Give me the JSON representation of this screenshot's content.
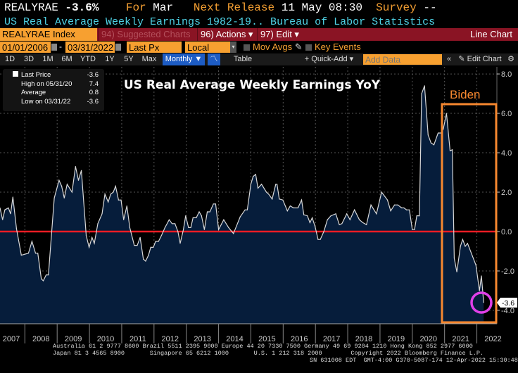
{
  "header": {
    "ticker": "REALYRAE",
    "last": "-3.6%",
    "for_label": "For",
    "for_value": "Mar",
    "next_release_label": "Next Release",
    "next_release_value": "11 May 08:30",
    "survey_label": "Survey",
    "survey_value": "--",
    "description": "US Real Average Weekly Earnings 1982-19.. Bureau of Labor Statistics"
  },
  "menubar": {
    "security": "REALYRAE Index",
    "suggested": "94) Suggested Charts",
    "actions": "96) Actions ▾",
    "edit": "97) Edit ▾",
    "chart_type": "Line Chart"
  },
  "controls": {
    "start_date": "01/01/2006",
    "end_date": "03/31/2022",
    "field": "Last Px",
    "currency": "Local CCY",
    "mov_avgs": "Mov Avgs",
    "key_events": "Key Events"
  },
  "toolbar": {
    "periods": [
      "1D",
      "3D",
      "1M",
      "6M",
      "YTD",
      "1Y",
      "5Y",
      "Max"
    ],
    "frequency": "Monthly ▼",
    "table": "Table",
    "quick_add": "+ Quick-Add ▾",
    "add_data_placeholder": "Add Data",
    "collapse": "«",
    "edit_chart": "✎ Edit Chart",
    "settings": "⚙"
  },
  "legend": [
    {
      "label": "Last Price",
      "value": "-3.6"
    },
    {
      "label": "High on 05/31/20",
      "value": "7.4"
    },
    {
      "label": "Average",
      "value": "0.8"
    },
    {
      "label": "Low on 03/31/22",
      "value": "-3.6"
    }
  ],
  "footer": [
    "Australia 61 2 9777 8600 Brazil 5511 2395 9000 Europe 44 20 7330 7500 Germany 49 69 9204 1210 Hong Kong 852 2977 6000",
    "Japan 81 3 4565 8900       Singapore 65 6212 1000       U.S. 1 212 318 2000        Copyright 2022 Bloomberg Finance L.P.",
    "SN 631008 EDT  GMT-4:00 G370-5087-174 12-Apr-2022 15:30:48"
  ],
  "colors": {
    "area": "#061d3b",
    "line": "#d8d8d8",
    "zero_line": "#ee1c24",
    "annotation_box": "#f7882f",
    "highlight_circle": "#e040e8",
    "accent_orange": "#f5a033"
  },
  "chart_data": {
    "type": "area",
    "title": "US Real Average Weekly Earnings YoY",
    "annotation": "Biden",
    "last_value_label": "-3.6",
    "xlim": [
      2007.23,
      2022.62
    ],
    "ylim": [
      -4.68,
      8.36
    ],
    "x_tick_labels": [
      "2007",
      "2008",
      "2009",
      "2010",
      "2011",
      "2012",
      "2013",
      "2014",
      "2015",
      "2016",
      "2017",
      "2018",
      "2019",
      "2020",
      "2021",
      "2022"
    ],
    "y_ticks": [
      8,
      6,
      4,
      2,
      0,
      -2,
      -4
    ],
    "y_tick_labels": [
      "8.0",
      "6.0",
      "4.0",
      "2.0",
      "0.0",
      "-2.0",
      "-4.0"
    ],
    "reference_line": 0,
    "grid": true,
    "y_axis_side": "right",
    "series": [
      {
        "x": [
          2007.23,
          2007.31,
          2007.38,
          2007.49,
          2007.56,
          2007.63,
          2007.74,
          2007.89,
          2008.11,
          2008.22,
          2008.33,
          2008.4,
          2008.51,
          2008.57,
          2008.66,
          2008.73,
          2008.91,
          2009.06,
          2009.14,
          2009.22,
          2009.31,
          2009.46,
          2009.57,
          2009.66,
          2009.75,
          2009.9,
          2009.99,
          2010.08,
          2010.15,
          2010.26,
          2010.39,
          2010.48,
          2010.58,
          2010.66,
          2010.74,
          2010.81,
          2010.9,
          2010.98,
          2011.06,
          2011.16,
          2011.25,
          2011.39,
          2011.48,
          2011.57,
          2011.67,
          2011.74,
          2011.83,
          2011.9,
          2011.98,
          2012.05,
          2012.14,
          2012.23,
          2012.34,
          2012.47,
          2012.56,
          2012.65,
          2012.74,
          2012.81,
          2012.91,
          2012.98,
          2013.07,
          2013.14,
          2013.21,
          2013.31,
          2013.4,
          2013.47,
          2013.56,
          2013.65,
          2013.73,
          2013.84,
          2013.91,
          2014.0,
          2014.16,
          2014.31,
          2014.46,
          2014.67,
          2014.82,
          2014.89,
          2015.0,
          2015.07,
          2015.15,
          2015.22,
          2015.33,
          2015.48,
          2015.55,
          2015.66,
          2015.77,
          2015.81,
          2015.88,
          2015.99,
          2016.13,
          2016.22,
          2016.32,
          2016.46,
          2016.57,
          2016.64,
          2016.75,
          2016.83,
          2016.9,
          2016.99,
          2017.08,
          2017.15,
          2017.26,
          2017.37,
          2017.48,
          2017.63,
          2017.74,
          2017.82,
          2017.97,
          2018.07,
          2018.21,
          2018.36,
          2018.47,
          2018.58,
          2018.72,
          2018.89,
          2019.05,
          2019.23,
          2019.33,
          2019.45,
          2019.55,
          2019.67,
          2019.74,
          2019.82,
          2019.91,
          2020.0,
          2020.07,
          2020.14,
          2020.22,
          2020.29,
          2020.38,
          2020.49,
          2020.58,
          2020.67,
          2020.8,
          2020.89,
          2020.96,
          2021.06,
          2021.17,
          2021.24,
          2021.3,
          2021.38,
          2021.49,
          2021.56,
          2021.64,
          2021.71,
          2021.97,
          2022.08,
          2022.14,
          2022.21
        ],
        "y": [
          1.2,
          0.6,
          1.1,
          1.2,
          0.9,
          1.75,
          0.15,
          -1.2,
          -1.1,
          -0.5,
          -1.1,
          -1.1,
          -2.4,
          -2.5,
          -2.2,
          -2.2,
          1.7,
          2.6,
          2.3,
          1.7,
          2.4,
          2.0,
          3.3,
          2.6,
          3.1,
          -0.2,
          -0.8,
          -0.3,
          -0.6,
          0.4,
          0.9,
          1.9,
          1.5,
          1.9,
          2.0,
          2.3,
          1.6,
          1.6,
          0.6,
          1.3,
          0.2,
          -0.7,
          -0.7,
          -0.3,
          -1.4,
          -1.5,
          -1.2,
          -0.8,
          -0.8,
          -0.5,
          -0.5,
          -0.2,
          0.2,
          0.6,
          0.4,
          0.4,
          0.0,
          -0.6,
          0.1,
          0.8,
          0.2,
          0.2,
          0.7,
          0.7,
          1.0,
          0.8,
          0.1,
          1.0,
          1.0,
          1.4,
          1.4,
          0.1,
          0.6,
          0.2,
          -0.1,
          0.75,
          1.1,
          1.1,
          2.4,
          2.8,
          2.9,
          2.2,
          2.4,
          2.0,
          1.9,
          1.65,
          2.4,
          2.4,
          1.65,
          1.6,
          1.05,
          1.3,
          1.2,
          1.2,
          1.6,
          0.85,
          0.8,
          0.45,
          0.7,
          0.25,
          -0.4,
          -0.4,
          0.0,
          0.6,
          0.8,
          0.9,
          0.35,
          0.4,
          0.9,
          0.6,
          1.1,
          0.6,
          0.45,
          0.35,
          1.35,
          0.9,
          2.0,
          1.6,
          1.05,
          1.35,
          1.35,
          1.2,
          1.2,
          1.1,
          1.1,
          0.1,
          0.1,
          0.8,
          0.8,
          7.0,
          7.4,
          4.9,
          4.5,
          4.4,
          5.0,
          5.0,
          5.2,
          6.0,
          4.1,
          4.15,
          -1.35,
          -2.05,
          -0.75,
          -0.4,
          -0.75,
          -0.6,
          -1.7,
          -3.0,
          -2.25,
          -3.6
        ]
      }
    ]
  }
}
